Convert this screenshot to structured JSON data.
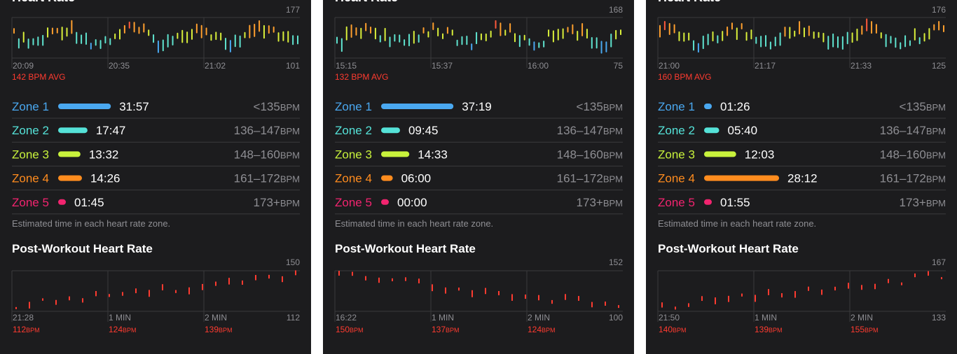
{
  "panels": [
    {
      "title": "Heart Rate",
      "hr": {
        "max": 177,
        "min": 101,
        "times": [
          "20:09",
          "20:35",
          "21:02"
        ],
        "avg": "142 BPM AVG"
      },
      "zones": [
        {
          "name": "Zone 1",
          "time": "31:57",
          "range": "<135",
          "unit": "BPM",
          "color": "#4aa8f0"
        },
        {
          "name": "Zone 2",
          "time": "17:47",
          "range": "136–147",
          "unit": "BPM",
          "color": "#55e2d8"
        },
        {
          "name": "Zone 3",
          "time": "13:32",
          "range": "148–160",
          "unit": "BPM",
          "color": "#c8f23c"
        },
        {
          "name": "Zone 4",
          "time": "14:26",
          "range": "161–172",
          "unit": "BPM",
          "color": "#ff8c1e"
        },
        {
          "name": "Zone 5",
          "time": "01:45",
          "range": "173+",
          "unit": "BPM",
          "color": "#f2246f"
        }
      ],
      "note": "Estimated time in each heart rate zone.",
      "post": {
        "title": "Post-Workout Heart Rate",
        "max": 150,
        "min": 112,
        "labels": [
          "21:28",
          "1 MIN",
          "2 MIN"
        ],
        "bpms": [
          {
            "value": "112",
            "unit": "BPM"
          },
          {
            "value": "124",
            "unit": "BPM"
          },
          {
            "value": "139",
            "unit": "BPM"
          }
        ]
      }
    },
    {
      "title": "Heart Rate",
      "hr": {
        "max": 168,
        "min": 75,
        "times": [
          "15:15",
          "15:37",
          "16:00"
        ],
        "avg": "132 BPM AVG"
      },
      "zones": [
        {
          "name": "Zone 1",
          "time": "37:19",
          "range": "<135",
          "unit": "BPM",
          "color": "#4aa8f0"
        },
        {
          "name": "Zone 2",
          "time": "09:45",
          "range": "136–147",
          "unit": "BPM",
          "color": "#55e2d8"
        },
        {
          "name": "Zone 3",
          "time": "14:33",
          "range": "148–160",
          "unit": "BPM",
          "color": "#c8f23c"
        },
        {
          "name": "Zone 4",
          "time": "06:00",
          "range": "161–172",
          "unit": "BPM",
          "color": "#ff8c1e"
        },
        {
          "name": "Zone 5",
          "time": "00:00",
          "range": "173+",
          "unit": "BPM",
          "color": "#f2246f"
        }
      ],
      "note": "Estimated time in each heart rate zone.",
      "post": {
        "title": "Post-Workout Heart Rate",
        "max": 152,
        "min": 100,
        "labels": [
          "16:22",
          "1 MIN",
          "2 MIN"
        ],
        "bpms": [
          {
            "value": "150",
            "unit": "BPM"
          },
          {
            "value": "137",
            "unit": "BPM"
          },
          {
            "value": "124",
            "unit": "BPM"
          }
        ]
      }
    },
    {
      "title": "Heart Rate",
      "hr": {
        "max": 176,
        "min": 125,
        "times": [
          "21:00",
          "21:17",
          "21:33"
        ],
        "avg": "160 BPM AVG"
      },
      "zones": [
        {
          "name": "Zone 1",
          "time": "01:26",
          "range": "<135",
          "unit": "BPM",
          "color": "#4aa8f0"
        },
        {
          "name": "Zone 2",
          "time": "05:40",
          "range": "136–147",
          "unit": "BPM",
          "color": "#55e2d8"
        },
        {
          "name": "Zone 3",
          "time": "12:03",
          "range": "148–160",
          "unit": "BPM",
          "color": "#c8f23c"
        },
        {
          "name": "Zone 4",
          "time": "28:12",
          "range": "161–172",
          "unit": "BPM",
          "color": "#ff8c1e"
        },
        {
          "name": "Zone 5",
          "time": "01:55",
          "range": "173+",
          "unit": "BPM",
          "color": "#f2246f"
        }
      ],
      "note": "Estimated time in each heart rate zone.",
      "post": {
        "title": "Post-Workout Heart Rate",
        "max": 167,
        "min": 133,
        "labels": [
          "21:50",
          "1 MIN",
          "2 MIN"
        ],
        "bpms": [
          {
            "value": "140",
            "unit": "BPM"
          },
          {
            "value": "139",
            "unit": "BPM"
          },
          {
            "value": "155",
            "unit": "BPM"
          }
        ]
      }
    }
  ]
}
